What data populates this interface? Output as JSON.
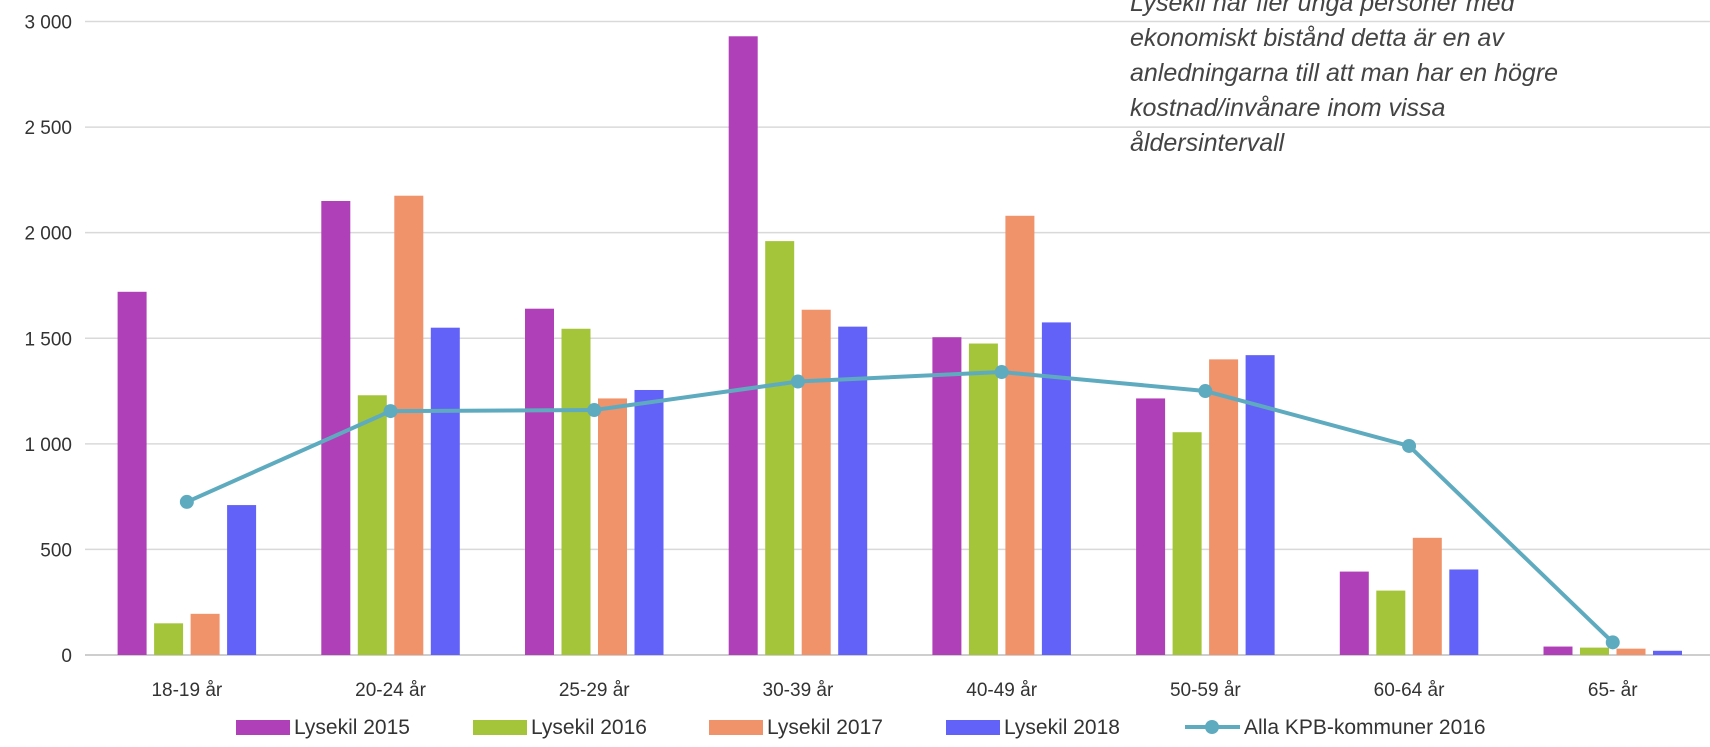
{
  "chart_data": {
    "type": "bar",
    "categories": [
      "18-19 år",
      "20-24 år",
      "25-29 år",
      "30-39 år",
      "40-49 år",
      "50-59 år",
      "60-64 år",
      "65- år"
    ],
    "series": [
      {
        "name": "Lysekil 2015",
        "type": "bar",
        "color": "#b040b8",
        "values": [
          1720,
          2150,
          1640,
          2930,
          1505,
          1215,
          395,
          40
        ]
      },
      {
        "name": "Lysekil 2016",
        "type": "bar",
        "color": "#a4c43a",
        "values": [
          150,
          1230,
          1545,
          1960,
          1475,
          1055,
          305,
          35
        ]
      },
      {
        "name": "Lysekil 2017",
        "type": "bar",
        "color": "#f0926a",
        "values": [
          195,
          2175,
          1215,
          1635,
          2080,
          1400,
          555,
          30
        ]
      },
      {
        "name": "Lysekil 2018",
        "type": "bar",
        "color": "#6262f8",
        "values": [
          710,
          1550,
          1255,
          1555,
          1575,
          1420,
          405,
          20
        ]
      },
      {
        "name": "Alla KPB-kommuner 2016",
        "type": "line",
        "color": "#5eabc0",
        "values": [
          725,
          1155,
          1160,
          1295,
          1340,
          1250,
          990,
          60
        ]
      }
    ],
    "yticks": [
      "0",
      "500",
      "1 000",
      "1 500",
      "2 000",
      "2 500",
      "3 000"
    ],
    "ylim": [
      0,
      3000
    ],
    "grid": true,
    "legend": "bottom",
    "annotation_lines": [
      "Lysekil har fler unga personer med",
      "ekonomiskt bistånd detta är en av",
      "anledningarna till att man har en högre",
      "kostnad/invånare inom vissa",
      "åldersintervall"
    ]
  }
}
